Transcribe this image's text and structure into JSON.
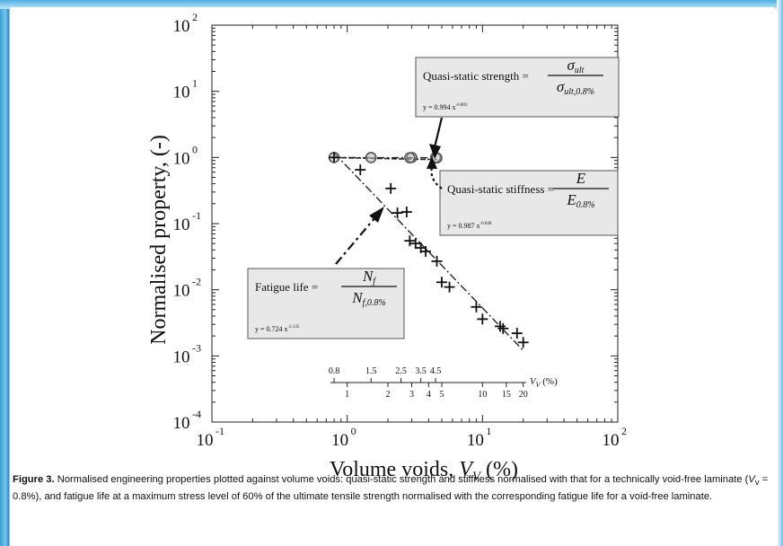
{
  "chart_data": {
    "type": "scatter",
    "xscale": "log",
    "yscale": "log",
    "xlim": [
      0.1,
      100
    ],
    "ylim": [
      0.0001,
      100
    ],
    "xlabel_main": "Volume voids, ",
    "xlabel_sym": "V",
    "xlabel_sub": "V",
    "xlabel_unit": " (%)",
    "ylabel": "Normalised property, (-)",
    "x_ticks": [
      {
        "value": 0.1,
        "base": "10",
        "exp": "-1"
      },
      {
        "value": 1,
        "base": "10",
        "exp": "0"
      },
      {
        "value": 10,
        "base": "10",
        "exp": "1"
      },
      {
        "value": 100,
        "base": "10",
        "exp": "2"
      }
    ],
    "y_ticks": [
      {
        "value": 100,
        "base": "10",
        "exp": "2"
      },
      {
        "value": 10,
        "base": "10",
        "exp": "1"
      },
      {
        "value": 1,
        "base": "10",
        "exp": "0"
      },
      {
        "value": 0.1,
        "base": "10",
        "exp": "-1"
      },
      {
        "value": 0.01,
        "base": "10",
        "exp": "-2"
      },
      {
        "value": 0.001,
        "base": "10",
        "exp": "-3"
      },
      {
        "value": 0.0001,
        "base": "10",
        "exp": "-4"
      }
    ],
    "series": [
      {
        "name": "Quasi-static strength",
        "marker": "circle",
        "x": [
          0.8,
          1.5,
          3.0,
          4.5
        ],
        "y": [
          1.0,
          1.0,
          1.0,
          1.0
        ],
        "fit": {
          "a": 0.994,
          "b": -0.003
        }
      },
      {
        "name": "Quasi-static stiffness",
        "marker": "circle",
        "x": [
          0.8,
          1.5,
          2.9,
          4.6
        ],
        "y": [
          1.0,
          0.995,
          0.99,
          0.985
        ],
        "fit": {
          "a": 0.987,
          "b": -0.04
        }
      },
      {
        "name": "Fatigue life",
        "marker": "plus",
        "x": [
          0.8,
          1.25,
          2.1,
          2.35,
          2.75,
          2.9,
          3.2,
          3.5,
          3.8,
          4.6,
          5.0,
          5.7,
          9.0,
          10.0,
          13.5,
          14.2,
          18.0,
          20.0
        ],
        "y": [
          1.0,
          0.65,
          0.34,
          0.145,
          0.15,
          0.055,
          0.05,
          0.043,
          0.038,
          0.027,
          0.013,
          0.011,
          0.0055,
          0.0036,
          0.0028,
          0.0026,
          0.0022,
          0.0016
        ],
        "fit": {
          "a": 0.724,
          "b": -2.135
        }
      }
    ],
    "secondary_axis": {
      "label_sym": "V",
      "label_sub": "V",
      "label_unit": " (%)",
      "top_ticks": [
        "0.8",
        "1.5",
        "2.5",
        "3.5",
        "4.5"
      ],
      "top_values": [
        0.8,
        1.5,
        2.5,
        3.5,
        4.5
      ],
      "bottom_ticks": [
        "1",
        "2",
        "3",
        "4",
        "5",
        "10",
        "15",
        "20"
      ],
      "bottom_values": [
        1,
        2,
        3,
        4,
        5,
        10,
        15,
        20
      ]
    },
    "annotations": {
      "strength": {
        "label": "Quasi-static strength",
        "num": "σ",
        "num_sub": "ult",
        "den": "σ",
        "den_sub": "ult,0.8%",
        "fit_prefix": "y = 0.994 x",
        "fit_exp": "-0.003"
      },
      "stiffness": {
        "label": "Quasi-static stiffness",
        "num": "E",
        "den": "E",
        "den_sub": "0.8%",
        "fit_prefix": "y = 0.987 x",
        "fit_exp": "-0.040"
      },
      "fatigue": {
        "label": "Fatigue life",
        "num": "N",
        "num_sub": "f",
        "den": "N",
        "den_sub": "f,0.8%",
        "fit_prefix": "y = 0.724 x",
        "fit_exp": "-2.135"
      }
    }
  },
  "caption": {
    "label": "Figure 3.",
    "part1": " Normalised engineering properties plotted against volume voids: quasi-static strength and stiffness normalised with that for a technically void-free laminate (",
    "sym": "V",
    "sub": "v",
    "part2": " = 0.8%), and fatigue life at a maximum stress level of 60% of the ultimate tensile strength normalised with the corresponding fatigue life for a void-free laminate."
  }
}
